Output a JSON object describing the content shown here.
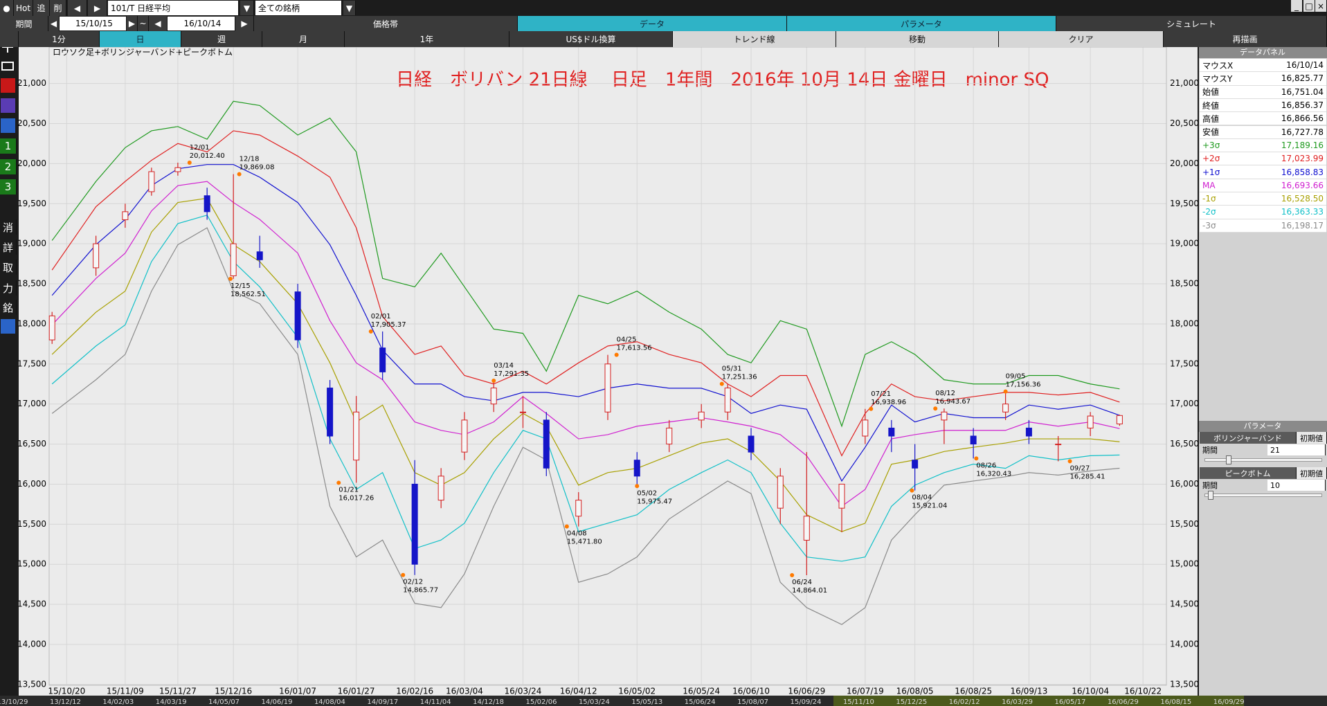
{
  "toolbar": {
    "hot": "Hot",
    "follow": "追",
    "delete": "削",
    "symbol": "101/T 日経平均",
    "universe": "全ての銘柄",
    "period_label": "期間",
    "start_date": "15/10/15",
    "tilde": "~",
    "end_date": "16/10/14",
    "tabs": [
      "価格帯",
      "データ",
      "パラメータ",
      "シミュレート"
    ],
    "buttons": [
      "1分",
      "日",
      "週",
      "月",
      "1年",
      "US$ドル換算",
      "トレンド線",
      "移動",
      "クリア",
      "再描画"
    ]
  },
  "sidebar": [
    "1",
    "2",
    "3",
    "消",
    "詳",
    "取",
    "力",
    "銘"
  ],
  "chart_data": {
    "type": "candlestick",
    "title": "日経　ボリバン 21日線　 日足　1年間　2016年 10月 14日 金曜日　minor SQ",
    "subtitle": "ロウソク足+ボリンジャーバンド+ピークボトム",
    "x": [
      "15/10/15",
      "15/10/30",
      "15/11/09",
      "15/11/18",
      "15/11/27",
      "15/12/07",
      "15/12/16",
      "15/12/25",
      "16/01/07",
      "16/01/18",
      "16/01/27",
      "16/02/05",
      "16/02/16",
      "16/02/25",
      "16/03/04",
      "16/03/14",
      "16/03/24",
      "16/04/01",
      "16/04/12",
      "16/04/22",
      "16/05/02",
      "16/05/13",
      "16/05/24",
      "16/06/02",
      "16/06/10",
      "16/06/20",
      "16/06/29",
      "16/07/11",
      "16/07/19",
      "16/07/28",
      "16/08/05",
      "16/08/15",
      "16/08/25",
      "16/09/05",
      "16/09/13",
      "16/09/23",
      "16/10/04",
      "16/10/14"
    ],
    "candles": {
      "up_color": "#d42020",
      "down_color": "#1515c8",
      "open": [
        17800,
        18700,
        19300,
        19650,
        19900,
        19600,
        18600,
        18900,
        18400,
        17200,
        16300,
        17700,
        16000,
        15800,
        16400,
        17000,
        16900,
        16800,
        15600,
        16900,
        16300,
        16500,
        16800,
        16900,
        16600,
        15700,
        15300,
        15700,
        16600,
        16700,
        16300,
        16800,
        16600,
        16900,
        16700,
        16500,
        16700,
        16751.04
      ],
      "high": [
        18150,
        19100,
        19500,
        19950,
        20012.4,
        19700,
        19869.08,
        19100,
        18500,
        17300,
        17100,
        17905.37,
        16300,
        16200,
        16900,
        17291.35,
        17100,
        16900,
        15900,
        17613.56,
        16400,
        16800,
        17000,
        17251.36,
        16700,
        16200,
        16400,
        16000,
        16938.96,
        16800,
        16500,
        16943.67,
        16700,
        17156.36,
        16800,
        16600,
        16900,
        16866.56
      ],
      "low": [
        17750,
        18600,
        19200,
        19600,
        19850,
        19300,
        18562.51,
        18700,
        17700,
        16500,
        16017.26,
        17300,
        14865.77,
        15700,
        16300,
        16900,
        16700,
        16100,
        15471.8,
        16800,
        15975.47,
        16400,
        16700,
        16800,
        16300,
        15500,
        14864.01,
        15400,
        16500,
        16400,
        15921.04,
        16500,
        16320.43,
        16800,
        16500,
        16285.41,
        16600,
        16727.78
      ],
      "close": [
        18100,
        19000,
        19400,
        19900,
        19950,
        19400,
        19000,
        18800,
        17800,
        16600,
        16900,
        17400,
        15000,
        16100,
        16800,
        17200,
        16900,
        16200,
        15800,
        17500,
        16100,
        16700,
        16900,
        17200,
        16400,
        16100,
        15600,
        16000,
        16800,
        16600,
        16200,
        16900,
        16500,
        17000,
        16600,
        16500,
        16850,
        16856.37
      ]
    },
    "series": [
      {
        "name": "+3σ",
        "color": "#1f9a1f",
        "values": [
          19041,
          19778,
          20200,
          20410,
          20463,
          20305,
          20779,
          20726,
          20357,
          20568,
          20147,
          18567,
          18462,
          18883,
          18462,
          17935,
          17882,
          17409,
          18356,
          18251,
          18409,
          18146,
          17935,
          17619,
          17514,
          18040,
          17935,
          16723,
          17619,
          17777,
          17619,
          17303,
          17250,
          17250,
          17356,
          17356,
          17250,
          17189.16
        ]
      },
      {
        "name": "+2σ",
        "color": "#e02020",
        "values": [
          18672,
          19462,
          19778,
          20042,
          20252,
          20147,
          20410,
          20357,
          20094,
          19831,
          19199,
          18093,
          17619,
          17724,
          17356,
          17250,
          17409,
          17250,
          17514,
          17724,
          17777,
          17619,
          17514,
          17250,
          17092,
          17356,
          17356,
          16355,
          16882,
          17250,
          17092,
          17040,
          17092,
          17145,
          17145,
          17113,
          17145,
          17023.99
        ]
      },
      {
        "name": "+1σ",
        "color": "#1010d0",
        "values": [
          18356,
          18988,
          19304,
          19726,
          19936,
          19989,
          19989,
          19831,
          19515,
          18988,
          18356,
          17672,
          17250,
          17250,
          17092,
          17040,
          17145,
          17145,
          17092,
          17197,
          17250,
          17197,
          17197,
          17092,
          16882,
          16987,
          16935,
          16039,
          16460,
          16987,
          16776,
          16882,
          16829,
          16829,
          16987,
          16935,
          16987,
          16858.83
        ]
      },
      {
        "name": "MA",
        "color": "#d020d0",
        "values": [
          17988,
          18567,
          18883,
          19410,
          19726,
          19778,
          19515,
          19304,
          18883,
          18040,
          17514,
          17303,
          16776,
          16671,
          16618,
          16776,
          17092,
          16882,
          16565,
          16618,
          16723,
          16776,
          16829,
          16776,
          16723,
          16618,
          16355,
          15723,
          15934,
          16565,
          16618,
          16671,
          16671,
          16671,
          16776,
          16723,
          16776,
          16693.66
        ]
      },
      {
        "name": "-1σ",
        "color": "#a8a000",
        "values": [
          17619,
          18146,
          18409,
          19146,
          19515,
          19568,
          18988,
          18778,
          18251,
          17514,
          16776,
          16987,
          16144,
          15987,
          16144,
          16565,
          16882,
          16723,
          15987,
          16144,
          16197,
          16355,
          16513,
          16565,
          16407,
          16039,
          15618,
          15407,
          15512,
          16249,
          16302,
          16407,
          16460,
          16513,
          16565,
          16565,
          16565,
          16528.5
        ]
      },
      {
        "name": "-2σ",
        "color": "#10c0c8",
        "values": [
          17250,
          17724,
          17988,
          18778,
          19252,
          19357,
          18778,
          18462,
          17830,
          16565,
          15934,
          16144,
          15196,
          15302,
          15512,
          16144,
          16671,
          16565,
          15407,
          15512,
          15618,
          15934,
          16144,
          16302,
          16144,
          15512,
          15091,
          15038,
          15091,
          15723,
          15987,
          16144,
          16250,
          16197,
          16355,
          16302,
          16355,
          16363.33
        ]
      },
      {
        "name": "-3σ",
        "color": "#8a8a8a",
        "values": [
          16882,
          17303,
          17619,
          18409,
          18988,
          19199,
          18409,
          18251,
          17619,
          15723,
          15091,
          15302,
          14512,
          14459,
          14880,
          15723,
          16460,
          16302,
          14775,
          14880,
          15091,
          15565,
          15828,
          16039,
          15881,
          14775,
          14459,
          14248,
          14459,
          15302,
          15618,
          15987,
          16039,
          16092,
          16144,
          16113,
          16165,
          16198.17
        ]
      }
    ],
    "annotations": [
      {
        "x": "15/12/01",
        "date_label": "12/01",
        "value": 20012.4,
        "label": "20,012.40",
        "position": "above"
      },
      {
        "x": "15/12/18",
        "date_label": "12/18",
        "value": 19869.08,
        "label": "19,869.08",
        "position": "above"
      },
      {
        "x": "15/12/15",
        "date_label": "12/15",
        "value": 18562.51,
        "label": "18,562.51",
        "position": "below"
      },
      {
        "x": "16/01/21",
        "date_label": "01/21",
        "value": 16017.26,
        "label": "16,017.26",
        "position": "below"
      },
      {
        "x": "16/02/01",
        "date_label": "02/01",
        "value": 17905.37,
        "label": "17,905.37",
        "position": "above"
      },
      {
        "x": "16/02/12",
        "date_label": "02/12",
        "value": 14865.77,
        "label": "14,865.77",
        "position": "below"
      },
      {
        "x": "16/03/14",
        "date_label": "03/14",
        "value": 17291.35,
        "label": "17,291.35",
        "position": "above"
      },
      {
        "x": "16/04/08",
        "date_label": "04/08",
        "value": 15471.8,
        "label": "15,471.80",
        "position": "below"
      },
      {
        "x": "16/04/25",
        "date_label": "04/25",
        "value": 17613.56,
        "label": "17,613.56",
        "position": "above"
      },
      {
        "x": "16/05/02",
        "date_label": "05/02",
        "value": 15975.47,
        "label": "15,975.47",
        "position": "below"
      },
      {
        "x": "16/05/31",
        "date_label": "05/31",
        "value": 17251.36,
        "label": "17,251.36",
        "position": "above"
      },
      {
        "x": "16/06/24",
        "date_label": "06/24",
        "value": 14864.01,
        "label": "14,864.01",
        "position": "below"
      },
      {
        "x": "16/07/21",
        "date_label": "07/21",
        "value": 16938.96,
        "label": "16,938.96",
        "position": "above"
      },
      {
        "x": "16/08/04",
        "date_label": "08/04",
        "value": 15921.04,
        "label": "15,921.04",
        "position": "below"
      },
      {
        "x": "16/08/12",
        "date_label": "08/12",
        "value": 16943.67,
        "label": "16,943.67",
        "position": "above"
      },
      {
        "x": "16/08/26",
        "date_label": "08/26",
        "value": 16320.43,
        "label": "16,320.43",
        "position": "below"
      },
      {
        "x": "16/09/05",
        "date_label": "09/05",
        "value": 17156.36,
        "label": "17,156.36",
        "position": "above"
      },
      {
        "x": "16/09/27",
        "date_label": "09/27",
        "value": 16285.41,
        "label": "16,285.41",
        "position": "below"
      }
    ],
    "xlim": [
      "15/10/14",
      "16/10/30"
    ],
    "xticks": [
      "15/10/20",
      "15/11/09",
      "15/11/27",
      "15/12/16",
      "16/01/07",
      "16/01/27",
      "16/02/16",
      "16/03/04",
      "16/03/24",
      "16/04/12",
      "16/05/02",
      "16/05/24",
      "16/06/10",
      "16/06/29",
      "16/07/19",
      "16/08/05",
      "16/08/25",
      "16/09/13",
      "16/10/04",
      "16/10/22"
    ],
    "ylim": [
      13490,
      21455
    ],
    "yticks": [
      {
        "value": 13500,
        "label": "13,500"
      },
      {
        "value": 14000,
        "label": "14,000"
      },
      {
        "value": 14500,
        "label": "14,500"
      },
      {
        "value": 15000,
        "label": "15,000"
      },
      {
        "value": 15500,
        "label": "15,500"
      },
      {
        "value": 16000,
        "label": "16,000"
      },
      {
        "value": 16500,
        "label": "16,500"
      },
      {
        "value": 17000,
        "label": "17,000"
      },
      {
        "value": 17500,
        "label": "17,500"
      },
      {
        "value": 18000,
        "label": "18,000"
      },
      {
        "value": 18500,
        "label": "18,500"
      },
      {
        "value": 19000,
        "label": "19,000"
      },
      {
        "value": 19500,
        "label": "19,500"
      },
      {
        "value": 20000,
        "label": "20,000"
      },
      {
        "value": 20500,
        "label": "20,500"
      },
      {
        "value": 21000,
        "label": "21,000"
      }
    ],
    "grid": true
  },
  "data_panel": {
    "title": "データパネル",
    "rows": [
      {
        "label": "マウスX",
        "value": "16/10/14"
      },
      {
        "label": "マウスY",
        "value": "16,825.77"
      },
      {
        "label": "始値",
        "value": "16,751.04"
      },
      {
        "label": "終値",
        "value": "16,856.37"
      },
      {
        "label": "高値",
        "value": "16,866.56"
      },
      {
        "label": "安値",
        "value": "16,727.78"
      }
    ],
    "band_values": [
      "17,189.16",
      "17,023.99",
      "16,858.83",
      "16,693.66",
      "16,528.50",
      "16,363.33",
      "16,198.17"
    ]
  },
  "parameters": {
    "title": "パラメータ",
    "groups": [
      {
        "name": "ボリンジャーバンド",
        "reset": "初期値",
        "field": "期間",
        "value": "21"
      },
      {
        "name": "ピークボトム",
        "reset": "初期値",
        "field": "期間",
        "value": "10"
      }
    ]
  },
  "navigator": [
    "13/10/29",
    "13/12/12",
    "14/02/03",
    "14/03/19",
    "14/05/07",
    "14/06/19",
    "14/08/04",
    "14/09/17",
    "14/11/04",
    "14/12/18",
    "15/02/06",
    "15/03/24",
    "15/05/13",
    "15/06/24",
    "15/08/07",
    "15/09/24",
    "15/11/10",
    "15/12/25",
    "16/02/12",
    "16/03/29",
    "16/05/17",
    "16/06/29",
    "16/08/15",
    "16/09/29"
  ]
}
